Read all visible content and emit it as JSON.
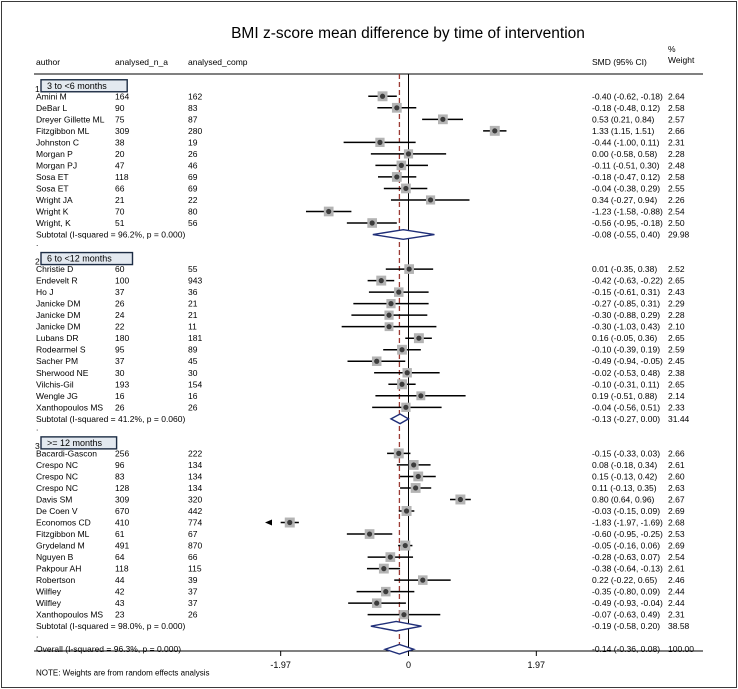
{
  "chart_data": {
    "type": "forest",
    "title": "BMI z-score mean difference by time of intervention",
    "columns": {
      "author": "author",
      "n_a": "analysed_n_a",
      "comp": "analysed_comp",
      "smd": "SMD (95% CI)",
      "weight_top": "%",
      "weight_bottom": "Weight"
    },
    "x_axis": {
      "range": [
        -2.15,
        2.15
      ],
      "ticks": [
        {
          "value": -1.97,
          "label": "-1.97"
        },
        {
          "value": 0,
          "label": "0"
        },
        {
          "value": 1.97,
          "label": "1.97"
        }
      ],
      "reference_line": -0.14
    },
    "rows": [
      {
        "kind": "group",
        "num": "1",
        "label": "3 to <6 months"
      },
      {
        "kind": "study",
        "author": "Amini M",
        "n_a": "164",
        "comp": "162",
        "smd": -0.4,
        "lo": -0.62,
        "hi": -0.18,
        "ci": "-0.40 (-0.62, -0.18)",
        "weight": "2.64"
      },
      {
        "kind": "study",
        "author": "DeBar L",
        "n_a": "90",
        "comp": "83",
        "smd": -0.18,
        "lo": -0.48,
        "hi": 0.12,
        "ci": "-0.18 (-0.48, 0.12)",
        "weight": "2.58"
      },
      {
        "kind": "study",
        "author": "Dreyer Gillette ML",
        "n_a": "75",
        "comp": "87",
        "smd": 0.53,
        "lo": 0.21,
        "hi": 0.84,
        "ci": "0.53 (0.21, 0.84)",
        "weight": "2.57"
      },
      {
        "kind": "study",
        "author": "Fitzgibbon ML",
        "n_a": "309",
        "comp": "280",
        "smd": 1.33,
        "lo": 1.15,
        "hi": 1.51,
        "ci": "1.33 (1.15, 1.51)",
        "weight": "2.66"
      },
      {
        "kind": "study",
        "author": "Johnston C",
        "n_a": "38",
        "comp": "19",
        "smd": -0.44,
        "lo": -1.0,
        "hi": 0.11,
        "ci": "-0.44 (-1.00, 0.11)",
        "weight": "2.31"
      },
      {
        "kind": "study",
        "author": "Morgan P",
        "n_a": "20",
        "comp": "26",
        "smd": 0.0,
        "lo": -0.58,
        "hi": 0.58,
        "ci": "0.00 (-0.58, 0.58)",
        "weight": "2.28"
      },
      {
        "kind": "study",
        "author": "Morgan PJ",
        "n_a": "47",
        "comp": "46",
        "smd": -0.11,
        "lo": -0.51,
        "hi": 0.3,
        "ci": "-0.11 (-0.51, 0.30)",
        "weight": "2.48"
      },
      {
        "kind": "study",
        "author": "Sosa ET",
        "n_a": "118",
        "comp": "69",
        "smd": -0.18,
        "lo": -0.47,
        "hi": 0.12,
        "ci": "-0.18 (-0.47, 0.12)",
        "weight": "2.58"
      },
      {
        "kind": "study",
        "author": "Sosa ET",
        "n_a": "66",
        "comp": "69",
        "smd": -0.04,
        "lo": -0.38,
        "hi": 0.29,
        "ci": "-0.04 (-0.38, 0.29)",
        "weight": "2.55"
      },
      {
        "kind": "study",
        "author": "Wright JA",
        "n_a": "21",
        "comp": "22",
        "smd": 0.34,
        "lo": -0.27,
        "hi": 0.94,
        "ci": "0.34 (-0.27, 0.94)",
        "weight": "2.26"
      },
      {
        "kind": "study",
        "author": "Wright K",
        "n_a": "70",
        "comp": "80",
        "smd": -1.23,
        "lo": -1.58,
        "hi": -0.88,
        "ci": "-1.23 (-1.58, -0.88)",
        "weight": "2.54"
      },
      {
        "kind": "study",
        "author": "Wright, K",
        "n_a": "51",
        "comp": "56",
        "smd": -0.56,
        "lo": -0.95,
        "hi": -0.18,
        "ci": "-0.56 (-0.95, -0.18)",
        "weight": "2.50"
      },
      {
        "kind": "subtotal",
        "label": "Subtotal  (I-squared = 96.2%, p = 0.000)",
        "smd": -0.08,
        "lo": -0.55,
        "hi": 0.4,
        "ci": "-0.08 (-0.55, 0.40)",
        "weight": "29.98"
      },
      {
        "kind": "dot",
        "label": "."
      },
      {
        "kind": "group",
        "num": "2",
        "label": "6 to <12 months"
      },
      {
        "kind": "study",
        "author": "Christie D",
        "n_a": "60",
        "comp": "55",
        "smd": 0.01,
        "lo": -0.35,
        "hi": 0.38,
        "ci": "0.01 (-0.35, 0.38)",
        "weight": "2.52"
      },
      {
        "kind": "study",
        "author": "Endevelt R",
        "n_a": "100",
        "comp": "943",
        "smd": -0.42,
        "lo": -0.63,
        "hi": -0.22,
        "ci": "-0.42 (-0.63, -0.22)",
        "weight": "2.65"
      },
      {
        "kind": "study",
        "author": "Ho J",
        "n_a": "37",
        "comp": "36",
        "smd": -0.15,
        "lo": -0.61,
        "hi": 0.31,
        "ci": "-0.15 (-0.61, 0.31)",
        "weight": "2.43"
      },
      {
        "kind": "study",
        "author": "Janicke DM",
        "n_a": "26",
        "comp": "21",
        "smd": -0.27,
        "lo": -0.85,
        "hi": 0.31,
        "ci": "-0.27 (-0.85, 0.31)",
        "weight": "2.29"
      },
      {
        "kind": "study",
        "author": "Janicke DM",
        "n_a": "24",
        "comp": "21",
        "smd": -0.3,
        "lo": -0.88,
        "hi": 0.29,
        "ci": "-0.30 (-0.88, 0.29)",
        "weight": "2.28"
      },
      {
        "kind": "study",
        "author": "Janicke DM",
        "n_a": "22",
        "comp": "11",
        "smd": -0.3,
        "lo": -1.03,
        "hi": 0.43,
        "ci": "-0.30 (-1.03, 0.43)",
        "weight": "2.10"
      },
      {
        "kind": "study",
        "author": "Lubans DR",
        "n_a": "180",
        "comp": "181",
        "smd": 0.16,
        "lo": -0.05,
        "hi": 0.36,
        "ci": "0.16 (-0.05, 0.36)",
        "weight": "2.65"
      },
      {
        "kind": "study",
        "author": "Rodearmel  S",
        "n_a": "95",
        "comp": "89",
        "smd": -0.1,
        "lo": -0.39,
        "hi": 0.19,
        "ci": "-0.10 (-0.39, 0.19)",
        "weight": "2.59"
      },
      {
        "kind": "study",
        "author": "Sacher PM",
        "n_a": "37",
        "comp": "45",
        "smd": -0.49,
        "lo": -0.94,
        "hi": -0.05,
        "ci": "-0.49 (-0.94, -0.05)",
        "weight": "2.45"
      },
      {
        "kind": "study",
        "author": "Sherwood NE",
        "n_a": "30",
        "comp": "30",
        "smd": -0.02,
        "lo": -0.53,
        "hi": 0.48,
        "ci": "-0.02 (-0.53, 0.48)",
        "weight": "2.38"
      },
      {
        "kind": "study",
        "author": "Vilchis-Gil",
        "n_a": "193",
        "comp": "154",
        "smd": -0.1,
        "lo": -0.31,
        "hi": 0.11,
        "ci": "-0.10 (-0.31, 0.11)",
        "weight": "2.65"
      },
      {
        "kind": "study",
        "author": "Wengle JG",
        "n_a": "16",
        "comp": "16",
        "smd": 0.19,
        "lo": -0.51,
        "hi": 0.88,
        "ci": "0.19 (-0.51, 0.88)",
        "weight": "2.14"
      },
      {
        "kind": "study",
        "author": "Xanthopoulos MS",
        "n_a": "26",
        "comp": "26",
        "smd": -0.04,
        "lo": -0.56,
        "hi": 0.51,
        "ci": "-0.04 (-0.56, 0.51)",
        "weight": "2.33"
      },
      {
        "kind": "subtotal",
        "label": "Subtotal  (I-squared = 41.2%, p = 0.060)",
        "smd": -0.13,
        "lo": -0.27,
        "hi": 0.0,
        "ci": "-0.13 (-0.27, 0.00)",
        "weight": "31.44"
      },
      {
        "kind": "dot",
        "label": "."
      },
      {
        "kind": "group",
        "num": "3",
        "label": ">= 12 months"
      },
      {
        "kind": "study",
        "author": "Bacardi-Gascon",
        "n_a": "256",
        "comp": "222",
        "smd": -0.15,
        "lo": -0.33,
        "hi": 0.03,
        "ci": "-0.15 (-0.33, 0.03)",
        "weight": "2.66"
      },
      {
        "kind": "study",
        "author": "Crespo NC",
        "n_a": "96",
        "comp": "134",
        "smd": 0.08,
        "lo": -0.18,
        "hi": 0.34,
        "ci": "0.08 (-0.18, 0.34)",
        "weight": "2.61"
      },
      {
        "kind": "study",
        "author": "Crespo NC",
        "n_a": "83",
        "comp": "134",
        "smd": 0.15,
        "lo": -0.13,
        "hi": 0.42,
        "ci": "0.15 (-0.13, 0.42)",
        "weight": "2.60"
      },
      {
        "kind": "study",
        "author": "Crespo NC",
        "n_a": "128",
        "comp": "134",
        "smd": 0.11,
        "lo": -0.13,
        "hi": 0.35,
        "ci": "0.11 (-0.13, 0.35)",
        "weight": "2.63"
      },
      {
        "kind": "study",
        "author": "Davis SM",
        "n_a": "309",
        "comp": "320",
        "smd": 0.8,
        "lo": 0.64,
        "hi": 0.96,
        "ci": "0.80 (0.64, 0.96)",
        "weight": "2.67"
      },
      {
        "kind": "study",
        "author": "De Coen V",
        "n_a": "670",
        "comp": "442",
        "smd": -0.03,
        "lo": -0.15,
        "hi": 0.09,
        "ci": "-0.03 (-0.15, 0.09)",
        "weight": "2.69"
      },
      {
        "kind": "study",
        "author": "Economos CD",
        "n_a": "410",
        "comp": "774",
        "smd": -1.83,
        "lo": -1.97,
        "hi": -1.69,
        "ci": "-1.83 (-1.97, -1.69)",
        "weight": "2.68",
        "arrow_left": true
      },
      {
        "kind": "study",
        "author": "Fitzgibbon ML",
        "n_a": "61",
        "comp": "67",
        "smd": -0.6,
        "lo": -0.95,
        "hi": -0.25,
        "ci": "-0.60 (-0.95, -0.25)",
        "weight": "2.53"
      },
      {
        "kind": "study",
        "author": "Grydeland M",
        "n_a": "491",
        "comp": "870",
        "smd": -0.05,
        "lo": -0.16,
        "hi": 0.06,
        "ci": "-0.05 (-0.16, 0.06)",
        "weight": "2.69"
      },
      {
        "kind": "study",
        "author": "Nguyen B",
        "n_a": "64",
        "comp": "66",
        "smd": -0.28,
        "lo": -0.63,
        "hi": 0.07,
        "ci": "-0.28 (-0.63, 0.07)",
        "weight": "2.54"
      },
      {
        "kind": "study",
        "author": "Pakpour AH",
        "n_a": "118",
        "comp": "115",
        "smd": -0.38,
        "lo": -0.64,
        "hi": -0.13,
        "ci": "-0.38 (-0.64, -0.13)",
        "weight": "2.61"
      },
      {
        "kind": "study",
        "author": "Robertson",
        "n_a": "44",
        "comp": "39",
        "smd": 0.22,
        "lo": -0.22,
        "hi": 0.65,
        "ci": "0.22 (-0.22, 0.65)",
        "weight": "2.46"
      },
      {
        "kind": "study",
        "author": "Wilfley",
        "n_a": "42",
        "comp": "37",
        "smd": -0.35,
        "lo": -0.8,
        "hi": 0.09,
        "ci": "-0.35 (-0.80, 0.09)",
        "weight": "2.44"
      },
      {
        "kind": "study",
        "author": "Wilfley",
        "n_a": "43",
        "comp": "37",
        "smd": -0.49,
        "lo": -0.93,
        "hi": -0.04,
        "ci": "-0.49 (-0.93, -0.04)",
        "weight": "2.44"
      },
      {
        "kind": "study",
        "author": "Xanthopoulos MS",
        "n_a": "23",
        "comp": "26",
        "smd": -0.07,
        "lo": -0.63,
        "hi": 0.49,
        "ci": "-0.07 (-0.63, 0.49)",
        "weight": "2.31"
      },
      {
        "kind": "subtotal",
        "label": "Subtotal  (I-squared = 98.0%, p = 0.000)",
        "smd": -0.19,
        "lo": -0.58,
        "hi": 0.2,
        "ci": "-0.19 (-0.58, 0.20)",
        "weight": "38.58"
      },
      {
        "kind": "dot",
        "label": "."
      },
      {
        "kind": "subtotal",
        "label": "Overall  (I-squared = 96.3%, p = 0.000)",
        "smd": -0.14,
        "lo": -0.36,
        "hi": 0.08,
        "ci": "-0.14 (-0.36, 0.08)",
        "weight": "100.00"
      },
      {
        "kind": "blank"
      },
      {
        "kind": "note",
        "label": "NOTE: Weights are from random effects analysis"
      }
    ]
  },
  "colors": {
    "background": "#ffffff",
    "border": "#3a3a3a",
    "box_fill": "#b4b4b4",
    "point": "#3c3c3c",
    "reference_line": "#9b3b34",
    "diamond": "#1f2e78",
    "group_box_fill": "#e3e9f0",
    "group_box_stroke": "#1c2c44"
  }
}
